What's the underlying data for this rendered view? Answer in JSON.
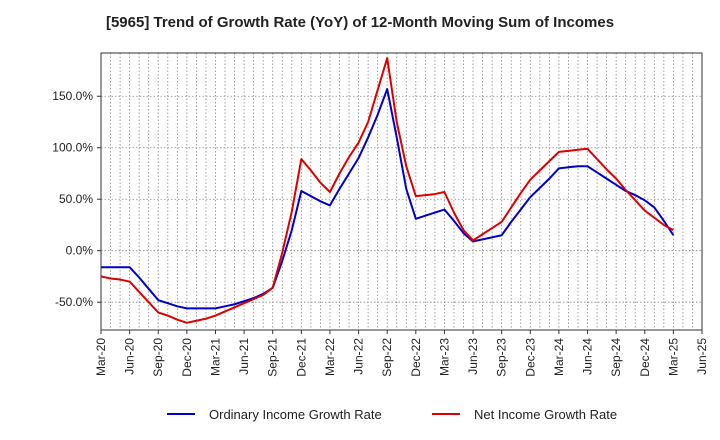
{
  "chart_data": {
    "type": "line",
    "title": "[5965]  Trend of Growth Rate (YoY) of 12-Month Moving Sum of Incomes",
    "xlabel": "",
    "ylabel": "",
    "x_tick_labels": [
      "Mar-20",
      "Jun-20",
      "Sep-20",
      "Dec-20",
      "Mar-21",
      "Jun-21",
      "Sep-21",
      "Dec-21",
      "Mar-22",
      "Jun-22",
      "Sep-22",
      "Dec-22",
      "Mar-23",
      "Jun-23",
      "Sep-23",
      "Dec-23",
      "Mar-24",
      "Jun-24",
      "Sep-24",
      "Dec-24",
      "Mar-25",
      "Jun-25"
    ],
    "y_ticks": [
      -50,
      0,
      50,
      100,
      150
    ],
    "y_tick_labels": [
      "-50.0%",
      "0.0%",
      "50.0%",
      "100.0%",
      "150.0%"
    ],
    "ylim": [
      -77,
      192
    ],
    "x_range_months": [
      "2020-03",
      "2025-06"
    ],
    "grid": true,
    "legend_position": "bottom",
    "series": [
      {
        "name": "Ordinary Income Growth Rate",
        "color": "#0000cc",
        "x": [
          "2020-03",
          "2020-04",
          "2020-05",
          "2020-06",
          "2020-07",
          "2020-08",
          "2020-09",
          "2020-10",
          "2020-11",
          "2020-12",
          "2021-01",
          "2021-02",
          "2021-03",
          "2021-04",
          "2021-05",
          "2021-06",
          "2021-07",
          "2021-08",
          "2021-09",
          "2021-10",
          "2021-11",
          "2021-12",
          "2022-01",
          "2022-02",
          "2022-03",
          "2022-04",
          "2022-05",
          "2022-06",
          "2022-07",
          "2022-08",
          "2022-09",
          "2022-10",
          "2022-11",
          "2022-12",
          "2023-01",
          "2023-02",
          "2023-03",
          "2023-04",
          "2023-05",
          "2023-06",
          "2023-07",
          "2023-08",
          "2023-09",
          "2023-10",
          "2023-11",
          "2023-12",
          "2024-01",
          "2024-02",
          "2024-03",
          "2024-04",
          "2024-05",
          "2024-06",
          "2024-07",
          "2024-08",
          "2024-09",
          "2024-10",
          "2024-11",
          "2024-12",
          "2025-01",
          "2025-02",
          "2025-03"
        ],
        "values": [
          -16,
          -16,
          -16,
          -16,
          -26,
          -37,
          -48,
          -51,
          -54,
          -56,
          -56,
          -56,
          -56,
          -54,
          -52,
          -49,
          -46,
          -42,
          -36,
          -10,
          20,
          58,
          53,
          48,
          44,
          60,
          75,
          90,
          110,
          132,
          157,
          110,
          60,
          31,
          34,
          37,
          40,
          29,
          17,
          9,
          11,
          13,
          15,
          28,
          40,
          52,
          61,
          70,
          80,
          81,
          82,
          82,
          76,
          70,
          64,
          58,
          54,
          49,
          42,
          29,
          15
        ]
      },
      {
        "name": "Net Income Growth Rate",
        "color": "#dd0000",
        "x": [
          "2020-03",
          "2020-04",
          "2020-05",
          "2020-06",
          "2020-07",
          "2020-08",
          "2020-09",
          "2020-10",
          "2020-11",
          "2020-12",
          "2021-01",
          "2021-02",
          "2021-03",
          "2021-04",
          "2021-05",
          "2021-06",
          "2021-07",
          "2021-08",
          "2021-09",
          "2021-10",
          "2021-11",
          "2021-12",
          "2022-01",
          "2022-02",
          "2022-03",
          "2022-04",
          "2022-05",
          "2022-06",
          "2022-07",
          "2022-08",
          "2022-09",
          "2022-10",
          "2022-11",
          "2022-12",
          "2023-01",
          "2023-02",
          "2023-03",
          "2023-04",
          "2023-05",
          "2023-06",
          "2023-07",
          "2023-08",
          "2023-09",
          "2023-10",
          "2023-11",
          "2023-12",
          "2024-01",
          "2024-02",
          "2024-03",
          "2024-04",
          "2024-05",
          "2024-06",
          "2024-07",
          "2024-08",
          "2024-09",
          "2024-10",
          "2024-11",
          "2024-12",
          "2025-01",
          "2025-02",
          "2025-03"
        ],
        "values": [
          -25,
          -27,
          -28,
          -30,
          -40,
          -50,
          -60,
          -63,
          -67,
          -70,
          -68,
          -66,
          -63,
          -59,
          -55,
          -51,
          -47,
          -43,
          -36,
          -2,
          38,
          89,
          78,
          66,
          57,
          75,
          91,
          105,
          125,
          156,
          187,
          125,
          82,
          53,
          54,
          55,
          57,
          37,
          20,
          10,
          16,
          22,
          28,
          42,
          56,
          69,
          78,
          87,
          96,
          97,
          98,
          99,
          89,
          79,
          70,
          59,
          49,
          39,
          32,
          25,
          20
        ]
      }
    ]
  }
}
